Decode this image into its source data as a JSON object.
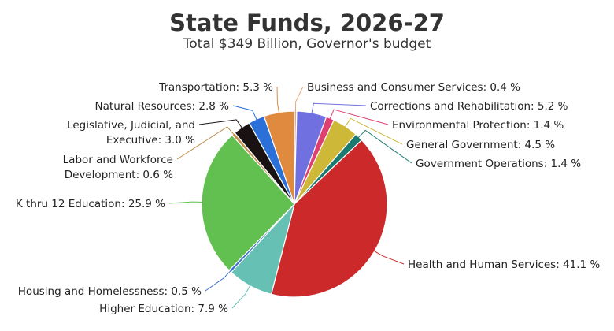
{
  "chart_data": {
    "type": "pie",
    "title": "State Funds, 2026-27",
    "subtitle": "Total $349 Billion, Governor's budget",
    "unit": "%",
    "slices": [
      {
        "name": "Business and Consumer Services",
        "label": "Business and Consumer Services: 0.4 %",
        "value": 0.4,
        "color": "#e8a878"
      },
      {
        "name": "Corrections and Rehabilitation",
        "label": "Corrections and Rehabilitation: 5.2 %",
        "value": 5.2,
        "color": "#7070e0"
      },
      {
        "name": "Environmental Protection",
        "label": "Environmental Protection: 1.4 %",
        "value": 1.4,
        "color": "#dd4070"
      },
      {
        "name": "General Government",
        "label": "General Government: 4.5 %",
        "value": 4.5,
        "color": "#cdb838"
      },
      {
        "name": "Government Operations",
        "label": "Government Operations: 1.4 %",
        "value": 1.4,
        "color": "#1a7a70"
      },
      {
        "name": "Health and Human Services",
        "label": "Health and Human Services: 41.1 %",
        "value": 41.1,
        "color": "#cc2a2a"
      },
      {
        "name": "Higher Education",
        "label": "Higher Education: 7.9 %",
        "value": 7.9,
        "color": "#66c0b4"
      },
      {
        "name": "Housing and Homelessness",
        "label": "Housing and Homelessness: 0.5 %",
        "value": 0.5,
        "color": "#3a70c8"
      },
      {
        "name": "K thru 12 Education",
        "label": "K thru 12 Education: 25.9 %",
        "value": 25.9,
        "color": "#62c050"
      },
      {
        "name": "Labor and Workforce Development",
        "label": [
          "Labor and Workforce",
          "Development: 0.6 %"
        ],
        "value": 0.6,
        "color": "#c09050"
      },
      {
        "name": "Legislative, Judicial, and Executive",
        "label": [
          "Legislative, Judicial, and",
          "Executive: 3.0 %"
        ],
        "value": 3.0,
        "color": "#1a1212"
      },
      {
        "name": "Natural Resources",
        "label": "Natural Resources: 2.8 %",
        "value": 2.8,
        "color": "#2a70d8"
      },
      {
        "name": "Transportation",
        "label": "Transportation: 5.3 %",
        "value": 5.3,
        "color": "#e08a40"
      }
    ]
  }
}
